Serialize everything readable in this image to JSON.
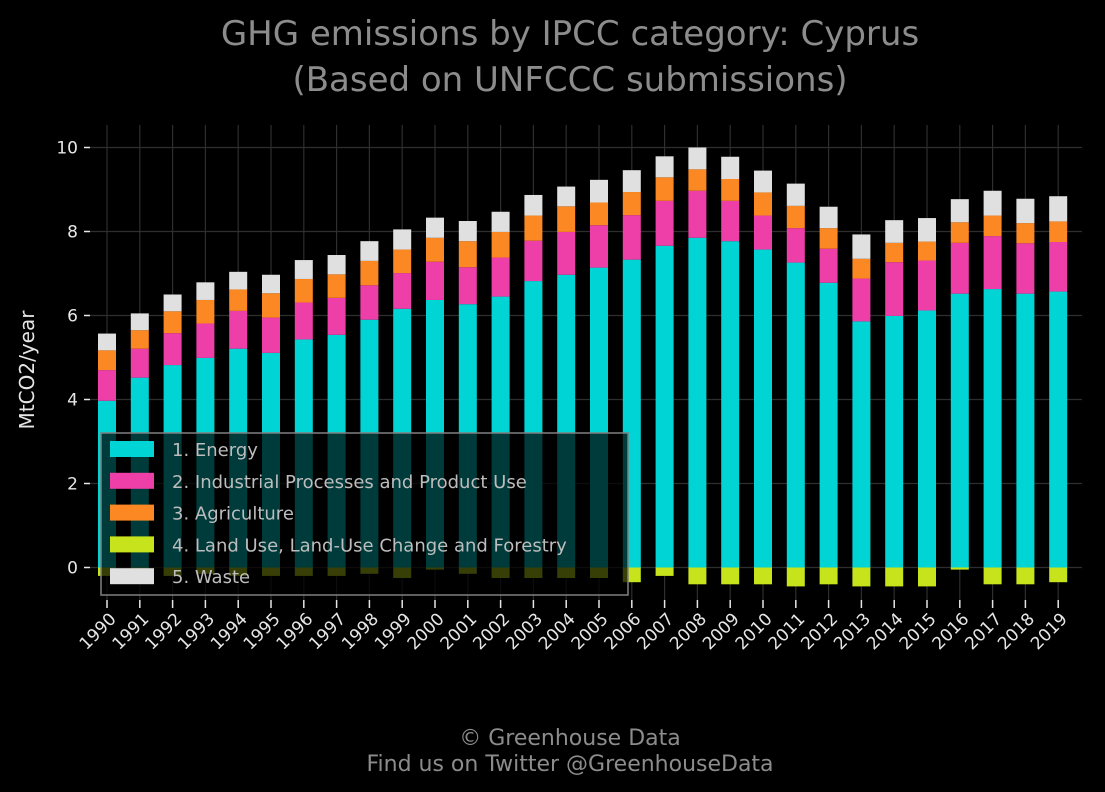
{
  "chart_data": {
    "type": "bar",
    "stacked": true,
    "title": "GHG emissions by IPCC category: Cyprus",
    "subtitle": "(Based on UNFCCC submissions)",
    "ylabel": "MtCO2/year",
    "xlabel": "",
    "ylim": [
      -0.9,
      10.5
    ],
    "yticks": [
      0,
      2,
      4,
      6,
      8,
      10
    ],
    "grid": true,
    "legend_position": "lower-left",
    "categories": [
      "1990",
      "1991",
      "1992",
      "1993",
      "1994",
      "1995",
      "1996",
      "1997",
      "1998",
      "1999",
      "2000",
      "2001",
      "2002",
      "2003",
      "2004",
      "2005",
      "2006",
      "2007",
      "2008",
      "2009",
      "2010",
      "2011",
      "2012",
      "2013",
      "2014",
      "2015",
      "2016",
      "2017",
      "2018",
      "2019"
    ],
    "series": [
      {
        "name": "1. Energy",
        "color": "#00d4d4",
        "values": [
          3.97,
          4.52,
          4.82,
          4.99,
          5.21,
          5.11,
          5.43,
          5.54,
          5.9,
          6.16,
          6.37,
          6.27,
          6.45,
          6.82,
          6.97,
          7.14,
          7.33,
          7.66,
          7.85,
          7.77,
          7.57,
          7.26,
          6.78,
          5.86,
          5.99,
          6.12,
          6.52,
          6.63,
          6.52,
          6.57
        ]
      },
      {
        "name": "2. Industrial Processes and Product Use",
        "color": "#ee3fa8",
        "values": [
          0.73,
          0.69,
          0.76,
          0.82,
          0.9,
          0.84,
          0.88,
          0.88,
          0.82,
          0.85,
          0.91,
          0.88,
          0.93,
          0.96,
          1.02,
          1.01,
          1.06,
          1.07,
          1.12,
          0.96,
          0.81,
          0.82,
          0.81,
          1.02,
          1.28,
          1.19,
          1.21,
          1.26,
          1.2,
          1.18
        ]
      },
      {
        "name": "3. Agriculture",
        "color": "#fb8822",
        "values": [
          0.47,
          0.44,
          0.52,
          0.56,
          0.51,
          0.58,
          0.56,
          0.56,
          0.58,
          0.56,
          0.57,
          0.62,
          0.61,
          0.6,
          0.61,
          0.54,
          0.55,
          0.56,
          0.51,
          0.52,
          0.55,
          0.53,
          0.49,
          0.47,
          0.46,
          0.45,
          0.49,
          0.49,
          0.48,
          0.49
        ]
      },
      {
        "name": "4. Land Use, Land-Use Change and Forestry",
        "color": "#c7e31b",
        "values": [
          -0.2,
          -0.15,
          -0.2,
          -0.15,
          -0.2,
          -0.2,
          -0.2,
          -0.2,
          -0.15,
          -0.25,
          -0.05,
          -0.15,
          -0.25,
          -0.25,
          -0.25,
          -0.25,
          -0.35,
          -0.2,
          -0.4,
          -0.4,
          -0.4,
          -0.45,
          -0.4,
          -0.45,
          -0.45,
          -0.45,
          -0.05,
          -0.4,
          -0.4,
          -0.35
        ]
      },
      {
        "name": "5. Waste",
        "color": "#e0e0e0",
        "values": [
          0.4,
          0.4,
          0.4,
          0.42,
          0.42,
          0.44,
          0.45,
          0.46,
          0.47,
          0.48,
          0.48,
          0.48,
          0.48,
          0.49,
          0.47,
          0.54,
          0.52,
          0.5,
          0.52,
          0.53,
          0.52,
          0.53,
          0.51,
          0.58,
          0.54,
          0.56,
          0.55,
          0.59,
          0.58,
          0.6
        ]
      }
    ]
  },
  "footer": {
    "line1": "© Greenhouse Data",
    "line2": "Find us on Twitter @GreenhouseData"
  }
}
